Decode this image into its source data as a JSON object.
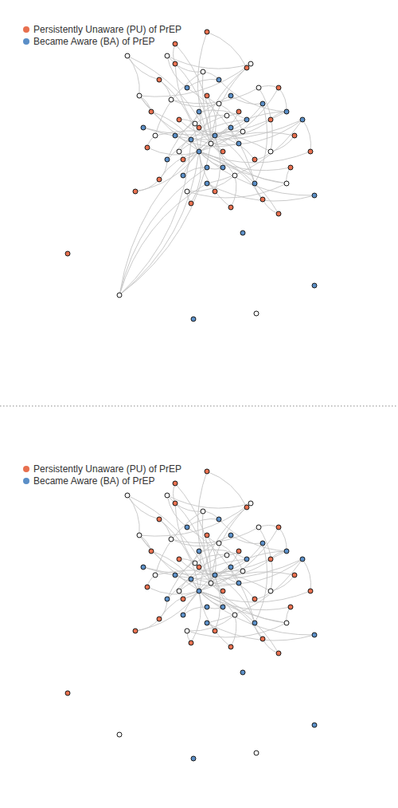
{
  "chart_data": [
    {
      "type": "network",
      "legend": "top-left",
      "xlim": [
        0,
        100
      ],
      "ylim": [
        0,
        100
      ],
      "tick_labels": false,
      "series": [
        {
          "name": "Persistently Unaware (PU) of PrEP",
          "color": "#e8704f",
          "marker": "circle",
          "x": [
            40,
            44,
            62,
            70,
            74,
            73,
            66,
            58,
            48,
            40,
            37,
            38,
            50,
            56,
            46,
            60,
            64,
            52,
            45,
            68,
            34,
            78,
            54,
            44,
            52,
            17,
            70
          ],
          "values": [
            80,
            84,
            83,
            78,
            66,
            58,
            50,
            48,
            49,
            55,
            63,
            72,
            68,
            62,
            60,
            72,
            60,
            76,
            70,
            70,
            52,
            62,
            52,
            89,
            92,
            36.4,
            46.4
          ]
        },
        {
          "name": "Became Aware (BA) of PrEP",
          "color": "#5b8fc7",
          "marker": "circle",
          "x": [
            50,
            54,
            48,
            56,
            52,
            46,
            58,
            60,
            44,
            50,
            62,
            42,
            58,
            66,
            64,
            47,
            55,
            72,
            36,
            76,
            52,
            79,
            61,
            79,
            48.6
          ],
          "values": [
            62,
            66,
            65,
            58,
            58,
            56,
            68,
            64,
            66,
            72,
            70,
            60,
            76,
            74,
            54,
            78,
            80,
            72,
            68,
            70,
            54,
            51,
            41.6,
            28.4,
            20
          ]
        },
        {
          "color": "#ffffff",
          "marker": "circle",
          "x": [
            53,
            49,
            57,
            45,
            61,
            55,
            43,
            65,
            68,
            39,
            51,
            59,
            47,
            72,
            35,
            63,
            42,
            32,
            30,
            64.4
          ],
          "values": [
            64,
            69,
            71,
            62,
            67,
            74,
            75,
            78,
            62,
            66,
            82,
            56,
            52,
            54,
            76,
            84,
            86,
            86,
            26,
            21.4
          ]
        }
      ],
      "edges": [
        [
          27,
          0
        ],
        [
          27,
          2
        ],
        [
          27,
          3
        ],
        [
          27,
          4
        ],
        [
          27,
          5
        ],
        [
          27,
          6
        ],
        [
          27,
          7
        ],
        [
          27,
          8
        ],
        [
          27,
          9
        ],
        [
          27,
          10
        ],
        [
          27,
          11
        ],
        [
          27,
          20
        ],
        [
          27,
          21
        ],
        [
          27,
          26
        ],
        [
          27,
          48
        ],
        [
          52,
          1
        ],
        [
          52,
          23
        ],
        [
          52,
          24
        ],
        [
          52,
          69
        ],
        [
          52,
          66
        ],
        [
          52,
          68
        ],
        [
          52,
          67
        ],
        [
          52,
          46
        ],
        [
          52,
          44
        ],
        [
          52,
          65
        ],
        [
          28,
          12
        ],
        [
          28,
          13
        ],
        [
          28,
          14
        ],
        [
          28,
          15
        ],
        [
          28,
          16
        ],
        [
          28,
          17
        ],
        [
          28,
          18
        ],
        [
          28,
          19
        ],
        [
          28,
          22
        ],
        [
          28,
          40
        ],
        [
          28,
          41
        ],
        [
          70,
          27
        ],
        [
          70,
          28
        ],
        [
          70,
          52
        ],
        [
          70,
          31
        ],
        [
          70,
          29
        ],
        [
          70,
          47
        ],
        [
          23,
          1
        ],
        [
          24,
          2
        ],
        [
          69,
          0
        ],
        [
          69,
          66
        ],
        [
          29,
          30
        ],
        [
          30,
          31
        ],
        [
          31,
          32
        ],
        [
          32,
          33
        ],
        [
          33,
          34
        ],
        [
          34,
          35
        ],
        [
          35,
          36
        ],
        [
          36,
          37
        ],
        [
          37,
          38
        ],
        [
          38,
          39
        ],
        [
          39,
          40
        ],
        [
          40,
          41
        ],
        [
          41,
          42
        ],
        [
          42,
          43
        ],
        [
          43,
          44
        ],
        [
          44,
          45
        ],
        [
          45,
          46
        ],
        [
          46,
          47
        ],
        [
          47,
          48
        ],
        [
          53,
          54
        ],
        [
          54,
          55
        ],
        [
          55,
          56
        ],
        [
          56,
          57
        ],
        [
          57,
          58
        ],
        [
          58,
          59
        ],
        [
          59,
          60
        ],
        [
          60,
          61
        ],
        [
          61,
          62
        ],
        [
          62,
          63
        ],
        [
          63,
          64
        ],
        [
          64,
          65
        ],
        [
          65,
          66
        ],
        [
          66,
          67
        ],
        [
          67,
          68
        ],
        [
          3,
          59
        ],
        [
          4,
          60
        ],
        [
          5,
          65
        ],
        [
          6,
          41
        ],
        [
          7,
          63
        ],
        [
          8,
          64
        ],
        [
          9,
          38
        ],
        [
          10,
          61
        ],
        [
          11,
          66
        ],
        [
          0,
          58
        ],
        [
          1,
          62
        ],
        [
          2,
          67
        ],
        [
          21,
          46
        ],
        [
          26,
          6
        ],
        [
          20,
          9
        ],
        [
          3,
          44
        ],
        [
          68,
          42
        ],
        [
          62,
          43
        ],
        [
          17,
          57
        ],
        [
          18,
          53
        ],
        [
          12,
          36
        ],
        [
          13,
          52
        ],
        [
          14,
          55
        ],
        [
          15,
          54
        ],
        [
          16,
          60
        ],
        [
          19,
          44
        ],
        [
          22,
          47
        ]
      ]
    },
    {
      "type": "network",
      "legend": "top-left",
      "xlim": [
        0,
        100
      ],
      "ylim": [
        8,
        100
      ],
      "tick_labels": false,
      "series": [
        {
          "name": "Persistently Unaware (PU) of PrEP",
          "color": "#e8704f",
          "marker": "circle",
          "x": [
            40,
            44,
            62,
            70,
            74,
            73,
            66,
            58,
            48,
            40,
            37,
            38,
            50,
            56,
            46,
            60,
            64,
            52,
            45,
            68,
            34,
            78,
            54,
            44,
            52,
            17,
            70
          ],
          "values": [
            80,
            84,
            83,
            78,
            66,
            58,
            50,
            48,
            49,
            55,
            63,
            72,
            68,
            62,
            60,
            72,
            60,
            76,
            70,
            70,
            52,
            62,
            52,
            89,
            92,
            36.4,
            46.4
          ]
        },
        {
          "name": "Became Aware (BA) of PrEP",
          "color": "#5b8fc7",
          "marker": "circle",
          "x": [
            50,
            54,
            48,
            56,
            52,
            46,
            58,
            60,
            44,
            50,
            62,
            42,
            58,
            66,
            64,
            47,
            55,
            72,
            36,
            76,
            52,
            79,
            61,
            79,
            48.6
          ],
          "values": [
            62,
            66,
            65,
            58,
            58,
            56,
            68,
            64,
            66,
            72,
            70,
            60,
            76,
            74,
            54,
            78,
            80,
            72,
            68,
            70,
            54,
            51,
            41.6,
            28.4,
            20
          ]
        },
        {
          "color": "#ffffff",
          "marker": "circle",
          "x": [
            53,
            49,
            57,
            45,
            61,
            55,
            43,
            65,
            68,
            39,
            51,
            59,
            47,
            72,
            35,
            63,
            42,
            32,
            30,
            64.4
          ],
          "values": [
            64,
            69,
            71,
            62,
            67,
            74,
            75,
            78,
            62,
            66,
            82,
            56,
            52,
            54,
            76,
            84,
            86,
            86,
            26,
            21.4
          ]
        }
      ],
      "edges": [
        [
          27,
          0
        ],
        [
          27,
          2
        ],
        [
          27,
          3
        ],
        [
          27,
          4
        ],
        [
          27,
          5
        ],
        [
          27,
          6
        ],
        [
          27,
          7
        ],
        [
          27,
          8
        ],
        [
          27,
          9
        ],
        [
          27,
          10
        ],
        [
          27,
          11
        ],
        [
          27,
          20
        ],
        [
          27,
          21
        ],
        [
          27,
          26
        ],
        [
          27,
          48
        ],
        [
          52,
          1
        ],
        [
          52,
          23
        ],
        [
          52,
          24
        ],
        [
          52,
          69
        ],
        [
          52,
          66
        ],
        [
          52,
          68
        ],
        [
          52,
          67
        ],
        [
          52,
          46
        ],
        [
          52,
          44
        ],
        [
          52,
          65
        ],
        [
          28,
          12
        ],
        [
          28,
          13
        ],
        [
          28,
          14
        ],
        [
          28,
          15
        ],
        [
          28,
          16
        ],
        [
          28,
          17
        ],
        [
          28,
          18
        ],
        [
          28,
          19
        ],
        [
          28,
          22
        ],
        [
          28,
          40
        ],
        [
          28,
          41
        ],
        [
          23,
          1
        ],
        [
          24,
          2
        ],
        [
          69,
          0
        ],
        [
          69,
          66
        ],
        [
          29,
          30
        ],
        [
          30,
          31
        ],
        [
          31,
          32
        ],
        [
          32,
          33
        ],
        [
          33,
          34
        ],
        [
          34,
          35
        ],
        [
          35,
          36
        ],
        [
          36,
          37
        ],
        [
          37,
          38
        ],
        [
          38,
          39
        ],
        [
          39,
          40
        ],
        [
          40,
          41
        ],
        [
          41,
          42
        ],
        [
          42,
          43
        ],
        [
          43,
          44
        ],
        [
          44,
          45
        ],
        [
          45,
          46
        ],
        [
          46,
          47
        ],
        [
          47,
          48
        ],
        [
          53,
          54
        ],
        [
          54,
          55
        ],
        [
          55,
          56
        ],
        [
          56,
          57
        ],
        [
          57,
          58
        ],
        [
          58,
          59
        ],
        [
          59,
          60
        ],
        [
          60,
          61
        ],
        [
          61,
          62
        ],
        [
          62,
          63
        ],
        [
          63,
          64
        ],
        [
          64,
          65
        ],
        [
          65,
          66
        ],
        [
          66,
          67
        ],
        [
          67,
          68
        ],
        [
          3,
          59
        ],
        [
          4,
          60
        ],
        [
          5,
          65
        ],
        [
          6,
          41
        ],
        [
          7,
          63
        ],
        [
          8,
          64
        ],
        [
          9,
          38
        ],
        [
          10,
          61
        ],
        [
          11,
          66
        ],
        [
          0,
          58
        ],
        [
          1,
          62
        ],
        [
          2,
          67
        ],
        [
          21,
          46
        ],
        [
          26,
          6
        ],
        [
          20,
          9
        ],
        [
          3,
          44
        ],
        [
          68,
          42
        ],
        [
          62,
          43
        ],
        [
          17,
          57
        ],
        [
          18,
          53
        ],
        [
          12,
          36
        ],
        [
          13,
          52
        ],
        [
          14,
          55
        ],
        [
          15,
          54
        ],
        [
          16,
          60
        ],
        [
          19,
          44
        ],
        [
          22,
          47
        ]
      ]
    }
  ]
}
